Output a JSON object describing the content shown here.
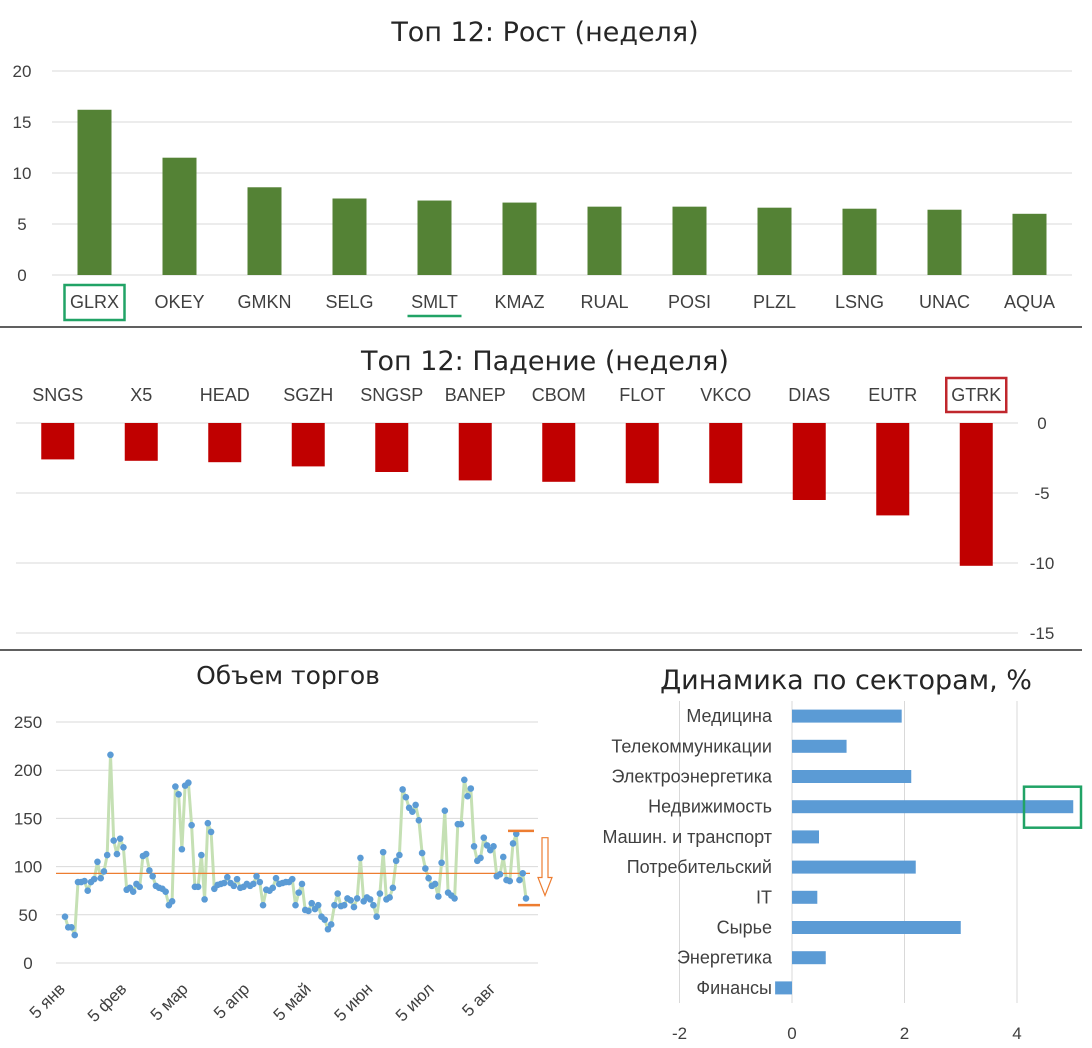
{
  "chart_data": [
    {
      "type": "bar",
      "title": "Топ 12: Рост (неделя)",
      "categories": [
        "GLRX",
        "OKEY",
        "GMKN",
        "SELG",
        "SMLT",
        "KMAZ",
        "RUAL",
        "POSI",
        "PLZL",
        "LSNG",
        "UNAC",
        "AQUA"
      ],
      "values": [
        16.2,
        11.5,
        8.6,
        7.5,
        7.3,
        7.1,
        6.7,
        6.7,
        6.6,
        6.5,
        6.4,
        6.0
      ],
      "ylim": [
        0,
        20
      ],
      "yticks": [
        "0",
        "5",
        "10",
        "15",
        "20"
      ],
      "color": "#548235",
      "highlight_box": "GLRX",
      "highlight_underline": "SMLT",
      "highlight_color": "#21a366",
      "grid": true
    },
    {
      "type": "bar",
      "title": "Топ 12: Падение (неделя)",
      "categories": [
        "SNGS",
        "X5",
        "HEAD",
        "SGZH",
        "SNGSP",
        "BANEP",
        "CBOM",
        "FLOT",
        "VKCO",
        "DIAS",
        "EUTR",
        "GTRK"
      ],
      "values": [
        -2.6,
        -2.7,
        -2.8,
        -3.1,
        -3.5,
        -4.1,
        -4.2,
        -4.3,
        -4.3,
        -5.5,
        -6.6,
        -10.2
      ],
      "ylim": [
        -15,
        0
      ],
      "yticks": [
        "0",
        "-5",
        "-10",
        "-15"
      ],
      "y_axis_position": "right",
      "color": "#c00000",
      "highlight_box": "GTRK",
      "highlight_color": "#c0272d",
      "grid": true
    },
    {
      "type": "line",
      "title": "Объем торгов",
      "ylim": [
        0,
        250
      ],
      "yticks": [
        "0",
        "50",
        "100",
        "150",
        "200",
        "250"
      ],
      "xticks": [
        "5 янв",
        "5 фев",
        "5 мар",
        "5 апр",
        "5 май",
        "5 июн",
        "5 июл",
        "5 авг"
      ],
      "values": [
        48,
        37,
        37,
        29,
        84,
        84,
        85,
        75,
        84,
        87,
        105,
        88,
        95,
        112,
        216,
        127,
        113,
        129,
        120,
        76,
        78,
        74,
        82,
        79,
        111,
        113,
        96,
        90,
        80,
        78,
        77,
        74,
        60,
        64,
        183,
        175,
        118,
        184,
        187,
        143,
        79,
        79,
        112,
        66,
        145,
        136,
        77,
        81,
        82,
        83,
        89,
        83,
        80,
        87,
        78,
        79,
        82,
        80,
        82,
        90,
        84,
        60,
        76,
        75,
        78,
        88,
        82,
        83,
        84,
        84,
        87,
        60,
        73,
        82,
        55,
        54,
        62,
        56,
        60,
        48,
        45,
        35,
        40,
        60,
        72,
        59,
        60,
        67,
        65,
        58,
        67,
        109,
        64,
        68,
        66,
        60,
        48,
        72,
        115,
        66,
        68,
        78,
        106,
        112,
        180,
        172,
        161,
        157,
        164,
        148,
        114,
        98,
        88,
        80,
        82,
        69,
        104,
        158,
        73,
        70,
        67,
        144,
        144,
        190,
        173,
        181,
        121,
        106,
        109,
        130,
        122,
        117,
        121,
        90,
        92,
        110,
        86,
        85,
        124,
        134,
        86,
        93,
        67
      ],
      "avg_line": 93,
      "series_color": "#5b9bd5",
      "line_color": "#c5e0b4",
      "avg_color": "#ed7d31",
      "grid": true
    },
    {
      "type": "bar",
      "orientation": "horizontal",
      "title": "Динамика по секторам, %",
      "categories": [
        "Медицина",
        "Телекоммуникации",
        "Электроэнергетика",
        "Недвижимость",
        "Машин. и транспорт",
        "Потребительский",
        "IT",
        "Сырье",
        "Энергетика",
        "Финансы"
      ],
      "values": [
        1.95,
        0.97,
        2.12,
        5.0,
        0.48,
        2.2,
        0.45,
        3.0,
        0.6,
        -0.3
      ],
      "xlim": [
        -2,
        5
      ],
      "xticks": [
        "-2",
        "0",
        "2",
        "4"
      ],
      "color": "#5b9bd5",
      "highlight_box": "Недвижимость",
      "highlight_color": "#21a366",
      "grid": true
    }
  ]
}
